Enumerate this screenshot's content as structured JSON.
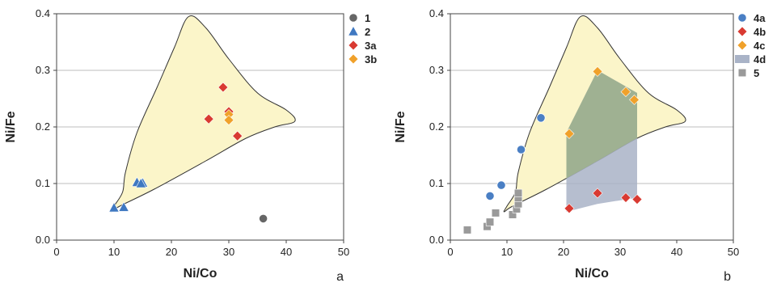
{
  "colors": {
    "field_fill": "#fbf5c9",
    "field_stroke": "#333333",
    "grid": "#bdbdbd",
    "s1": "#666666",
    "s2": "#3f78c1",
    "s3a": "#d93a32",
    "s3b": "#f0a12a",
    "s4a": "#4a7fc4",
    "s4b": "#d93a32",
    "s4c": "#f0a12a",
    "s4d": "#a9b3c7",
    "s4d_overlap": "#9caf8c",
    "s5": "#9a9a9a"
  },
  "chart_data": [
    {
      "type": "scatter",
      "panel_label": "a",
      "xlabel": "Ni/Co",
      "ylabel": "Ni/Fe",
      "xlim": [
        0,
        50
      ],
      "ylim": [
        0,
        0.4
      ],
      "xticks": [
        "0",
        "10",
        "20",
        "30",
        "40",
        "50"
      ],
      "yticks": [
        "0.0",
        "0.1",
        "0.2",
        "0.3",
        "0.4"
      ],
      "grid": "horizontal",
      "legend_position": "top-right",
      "field_outline": [
        [
          9.5,
          0.05
        ],
        [
          11,
          0.06
        ],
        [
          17,
          0.09
        ],
        [
          26,
          0.14
        ],
        [
          33,
          0.18
        ],
        [
          38,
          0.2
        ],
        [
          41.5,
          0.21
        ],
        [
          40,
          0.23
        ],
        [
          35,
          0.26
        ],
        [
          30,
          0.32
        ],
        [
          26,
          0.375
        ],
        [
          23,
          0.395
        ],
        [
          20.5,
          0.34
        ],
        [
          17.5,
          0.27
        ],
        [
          14,
          0.19
        ],
        [
          12,
          0.12
        ],
        [
          11.5,
          0.085
        ],
        [
          10,
          0.06
        ]
      ],
      "series": [
        {
          "name": "1",
          "marker": "circle",
          "color_key": "s1",
          "points": [
            [
              36,
              0.038
            ]
          ]
        },
        {
          "name": "2",
          "marker": "triangle",
          "color_key": "s2",
          "points": [
            [
              10,
              0.057
            ],
            [
              11.7,
              0.058
            ],
            [
              14,
              0.102
            ],
            [
              15,
              0.101
            ],
            [
              14.7,
              0.1
            ]
          ]
        },
        {
          "name": "3a",
          "marker": "diamond",
          "color_key": "s3a",
          "points": [
            [
              29,
              0.27
            ],
            [
              30,
              0.227
            ],
            [
              26.5,
              0.214
            ],
            [
              31.5,
              0.184
            ]
          ]
        },
        {
          "name": "3b",
          "marker": "diamond",
          "color_key": "s3b",
          "points": [
            [
              30,
              0.222
            ],
            [
              30,
              0.212
            ]
          ]
        }
      ]
    },
    {
      "type": "scatter",
      "panel_label": "b",
      "xlabel": "Ni/Co",
      "ylabel": "Ni/Fe",
      "xlim": [
        0,
        50
      ],
      "ylim": [
        0,
        0.4
      ],
      "xticks": [
        "0",
        "10",
        "20",
        "30",
        "40",
        "50"
      ],
      "yticks": [
        "0.0",
        "0.1",
        "0.2",
        "0.3",
        "0.4"
      ],
      "grid": "horizontal",
      "legend_position": "top-right",
      "field_outline": [
        [
          9.5,
          0.05
        ],
        [
          11,
          0.06
        ],
        [
          17,
          0.09
        ],
        [
          26,
          0.14
        ],
        [
          33,
          0.18
        ],
        [
          38,
          0.2
        ],
        [
          41.5,
          0.21
        ],
        [
          40,
          0.23
        ],
        [
          35,
          0.26
        ],
        [
          30,
          0.32
        ],
        [
          26,
          0.375
        ],
        [
          23,
          0.395
        ],
        [
          20.5,
          0.34
        ],
        [
          17.5,
          0.27
        ],
        [
          14,
          0.19
        ],
        [
          12,
          0.12
        ],
        [
          11.5,
          0.085
        ],
        [
          10,
          0.06
        ]
      ],
      "region_4d": [
        [
          20.5,
          0.05
        ],
        [
          20.5,
          0.19
        ],
        [
          26,
          0.3
        ],
        [
          33,
          0.26
        ],
        [
          33,
          0.075
        ],
        [
          26,
          0.064
        ]
      ],
      "series": [
        {
          "name": "4a",
          "marker": "circle",
          "color_key": "s4a",
          "points": [
            [
              16,
              0.216
            ],
            [
              12.5,
              0.16
            ],
            [
              9,
              0.097
            ],
            [
              7,
              0.078
            ]
          ]
        },
        {
          "name": "4b",
          "marker": "diamond",
          "color_key": "s4b",
          "points": [
            [
              21,
              0.056
            ],
            [
              26,
              0.083
            ],
            [
              31,
              0.075
            ],
            [
              33,
              0.072
            ]
          ]
        },
        {
          "name": "4c",
          "marker": "diamond",
          "color_key": "s4c",
          "points": [
            [
              26,
              0.298
            ],
            [
              31,
              0.262
            ],
            [
              32.5,
              0.248
            ],
            [
              21,
              0.188
            ]
          ]
        },
        {
          "name": "4d",
          "marker": "area",
          "color_key": "s4d",
          "points": []
        },
        {
          "name": "5",
          "marker": "square",
          "color_key": "s5",
          "points": [
            [
              3,
              0.018
            ],
            [
              6.5,
              0.024
            ],
            [
              7,
              0.032
            ],
            [
              8,
              0.048
            ],
            [
              11,
              0.045
            ],
            [
              11.7,
              0.055
            ],
            [
              12,
              0.064
            ],
            [
              12,
              0.075
            ],
            [
              12,
              0.083
            ]
          ]
        }
      ]
    }
  ]
}
